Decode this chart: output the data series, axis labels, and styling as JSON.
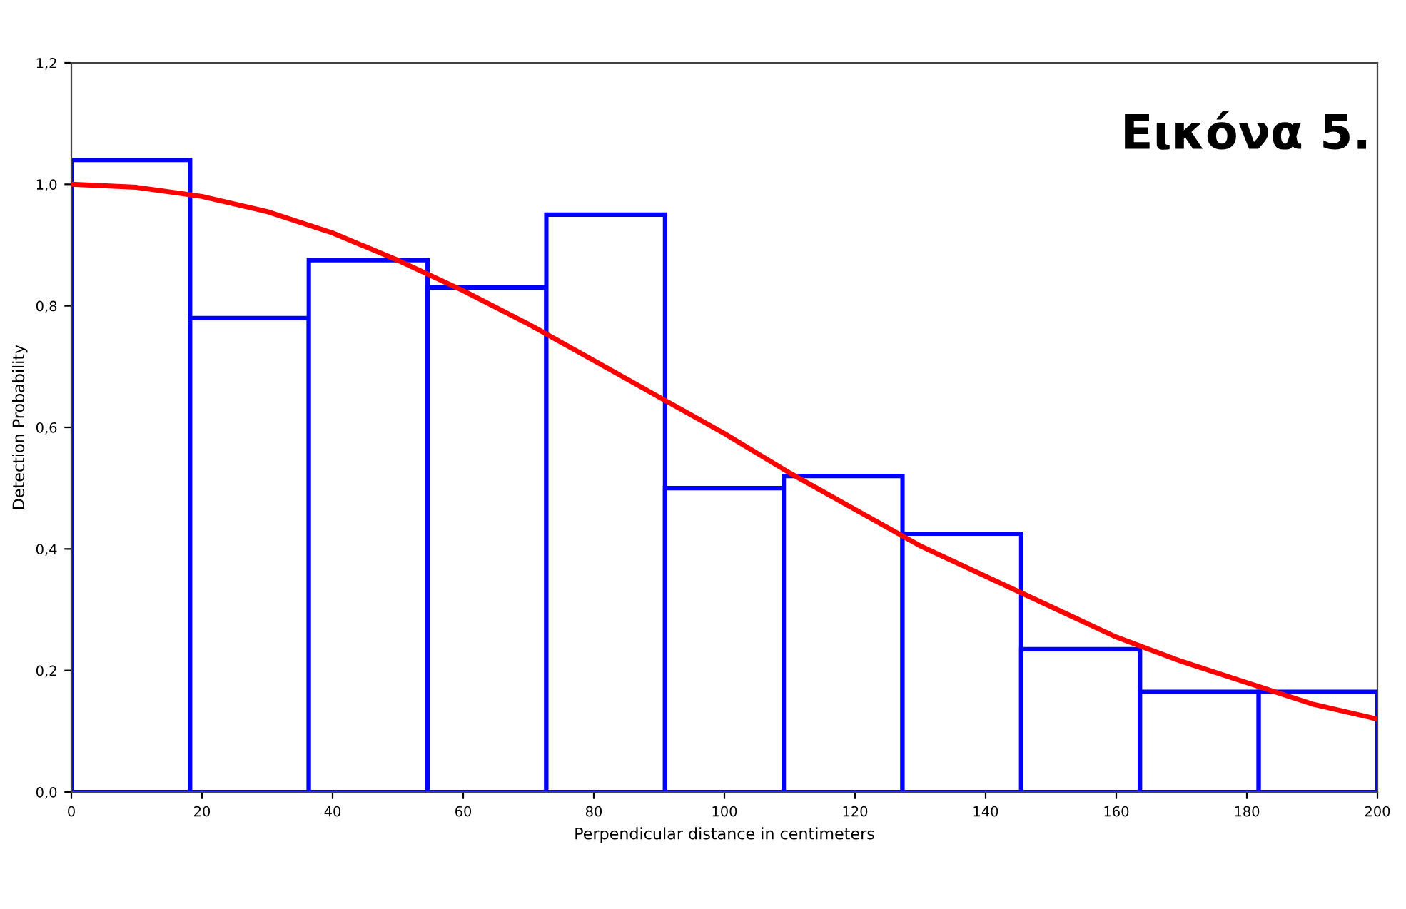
{
  "chart_data": {
    "type": "histogram",
    "xlabel": "Perpendicular distance in centimeters",
    "ylabel": "Detection Probability",
    "annotations": [
      "Εικόνα 5."
    ],
    "bins": [
      0,
      18.18,
      36.36,
      54.55,
      72.73,
      90.91,
      109.09,
      127.27,
      145.45,
      163.64,
      181.82,
      200
    ],
    "series": [
      {
        "color": "#0000ff",
        "values": [
          1.04,
          0.78,
          0.875,
          0.83,
          0.95,
          0.5,
          0.52,
          0.425,
          0.235,
          0.165,
          0.165
        ]
      },
      {
        "type": "line",
        "color": "#ff0000",
        "x": [
          0,
          10,
          20,
          30,
          40,
          50,
          60,
          70,
          80,
          90,
          100,
          110,
          120,
          130,
          140,
          150,
          160,
          170,
          180,
          190,
          200
        ],
        "values": [
          1.0,
          0.995,
          0.98,
          0.955,
          0.92,
          0.875,
          0.825,
          0.77,
          0.71,
          0.65,
          0.59,
          0.525,
          0.465,
          0.405,
          0.355,
          0.305,
          0.255,
          0.215,
          0.18,
          0.145,
          0.12
        ]
      }
    ],
    "xlim": [
      0,
      200
    ],
    "ylim": [
      0,
      1.2
    ],
    "xticks": [
      0,
      20,
      40,
      60,
      80,
      100,
      120,
      140,
      160,
      180,
      200
    ],
    "yticks": [
      {
        "value": 0,
        "label": "0,0"
      },
      {
        "value": 0.2,
        "label": "0,2"
      },
      {
        "value": 0.4,
        "label": "0,4"
      },
      {
        "value": 0.6,
        "label": "0,6"
      },
      {
        "value": 0.8,
        "label": "0,8"
      },
      {
        "value": 1.0,
        "label": "1,0"
      },
      {
        "value": 1.2,
        "label": "1,2"
      }
    ],
    "grid": false,
    "legend": false
  }
}
